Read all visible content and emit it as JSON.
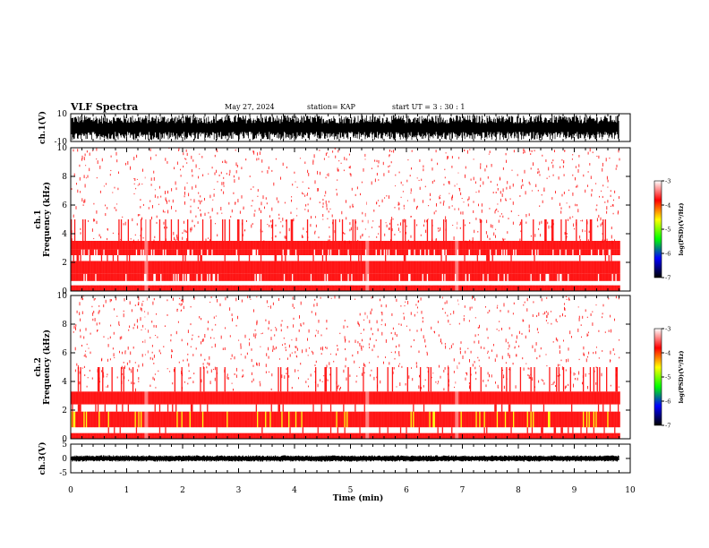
{
  "header": {
    "title": "VLF Spectra",
    "date": "May 27, 2024",
    "station": "station= KAP",
    "start_ut": "start  UT  =   3  : 30 : 1"
  },
  "chart_data": [
    {
      "type": "line",
      "panel": "ch1-waveform",
      "ylabel": "ch.1(V)",
      "ylim": [
        -10,
        10
      ],
      "ytick_labels": [
        "10",
        "-10"
      ],
      "xlim": [
        0,
        10
      ],
      "signal": "dense broadband waveform, amplitude roughly 3 to 9 V, data ends near 9.8 min"
    },
    {
      "type": "heatmap",
      "panel": "ch1-spectrogram",
      "ylabel": "ch.1\nFrequency (kHz)",
      "ylim": [
        0,
        10
      ],
      "ytick_labels": [
        "0",
        "2",
        "4",
        "6",
        "8",
        "10"
      ],
      "xlim": [
        0,
        10
      ],
      "x_data_end": 9.8,
      "colorbar": {
        "label": "log(PSD)(V²/Hz)",
        "range": [
          -7,
          -3
        ],
        "tick_labels": [
          "-3",
          "-4",
          "-5",
          "-6",
          "-7"
        ]
      },
      "bands_khz": [
        {
          "from": 0.0,
          "to": 0.4,
          "level": -4.3
        },
        {
          "from": 0.4,
          "to": 0.7,
          "level": -3.2
        },
        {
          "from": 0.7,
          "to": 1.2,
          "level": -3.6
        },
        {
          "from": 1.2,
          "to": 2.1,
          "level": -4.1
        },
        {
          "from": 2.1,
          "to": 2.5,
          "level": -3.4
        },
        {
          "from": 2.5,
          "to": 2.9,
          "level": -3.6
        },
        {
          "from": 2.9,
          "to": 3.5,
          "level": -4.0
        },
        {
          "from": 3.5,
          "to": 5.0,
          "level": -3.45
        },
        {
          "from": 5.0,
          "to": 10.0,
          "level": -3.15
        }
      ]
    },
    {
      "type": "heatmap",
      "panel": "ch2-spectrogram",
      "ylabel": "ch.2\nFrequency (kHz)",
      "ylim": [
        0,
        10
      ],
      "ytick_labels": [
        "0",
        "2",
        "4",
        "6",
        "8",
        "10"
      ],
      "xlim": [
        0,
        10
      ],
      "x_data_end": 9.8,
      "colorbar": {
        "label": "log(PSD)(V²/Hz)",
        "range": [
          -7,
          -3
        ],
        "tick_labels": [
          "-3",
          "-4",
          "-5",
          "-6",
          "-7"
        ]
      },
      "bands_khz": [
        {
          "from": 0.0,
          "to": 0.4,
          "level": -4.2
        },
        {
          "from": 0.4,
          "to": 0.8,
          "level": -3.5
        },
        {
          "from": 0.8,
          "to": 1.9,
          "level": -4.5
        },
        {
          "from": 1.9,
          "to": 2.4,
          "level": -3.5
        },
        {
          "from": 2.4,
          "to": 3.3,
          "level": -4.3
        },
        {
          "from": 3.3,
          "to": 5.0,
          "level": -3.4
        },
        {
          "from": 5.0,
          "to": 10.0,
          "level": -3.15
        }
      ]
    },
    {
      "type": "line",
      "panel": "ch3-waveform",
      "ylabel": "ch.3(V)",
      "ylim": [
        -5,
        5
      ],
      "ytick_labels": [
        "5",
        "0",
        "-5"
      ],
      "xlim": [
        0,
        10
      ],
      "signal": "narrow band around 0 V, amplitude roughly 1 V, data ends near 9.8 min"
    }
  ],
  "xaxis": {
    "label": "Time (min)",
    "tick_labels": [
      "0",
      "1",
      "2",
      "3",
      "4",
      "5",
      "6",
      "7",
      "8",
      "9",
      "10"
    ]
  },
  "colors": {
    "colormap": [
      "#ffffff",
      "#ff0000",
      "#ffff00",
      "#00ff00",
      "#0000ff",
      "#000000"
    ]
  }
}
